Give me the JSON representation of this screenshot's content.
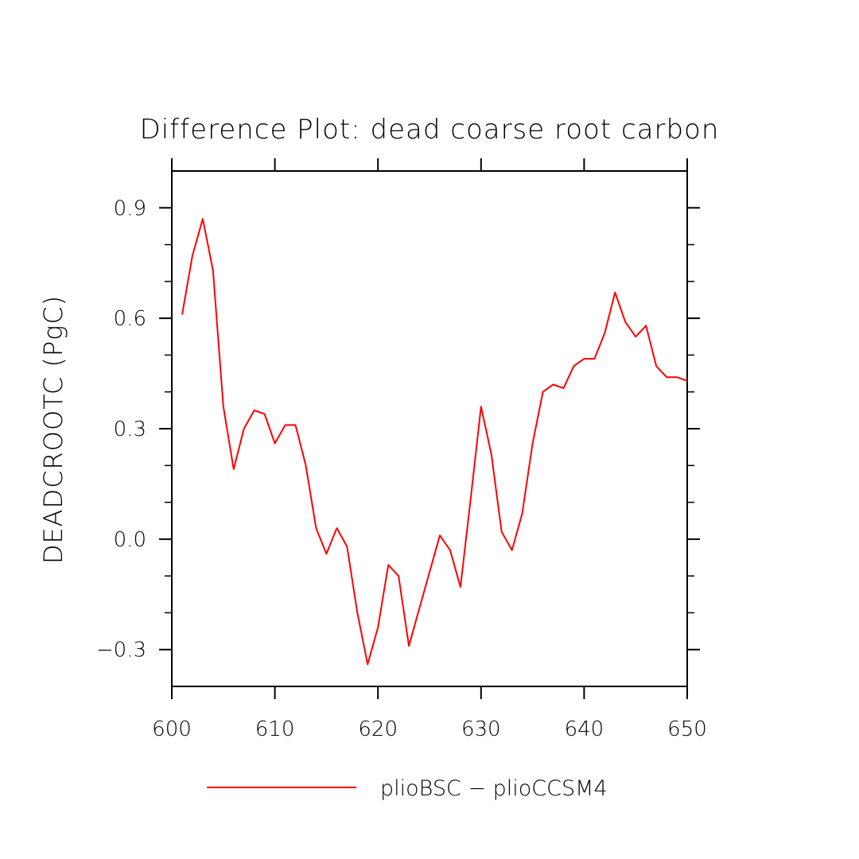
{
  "chart_data": {
    "type": "line",
    "title": "Difference Plot: dead coarse root carbon",
    "xlabel": "",
    "ylabel": "DEADCROOTC  (PgC)",
    "xlim": [
      600,
      650
    ],
    "ylim": [
      -0.4,
      1.0
    ],
    "x_ticks": [
      600,
      610,
      620,
      630,
      640,
      650
    ],
    "x_tick_labels": [
      "600",
      "610",
      "620",
      "630",
      "640",
      "650"
    ],
    "y_ticks": [
      -0.3,
      0.0,
      0.3,
      0.6,
      0.9
    ],
    "y_tick_labels": [
      "−0.3",
      "0.0",
      "0.3",
      "0.6",
      "0.9"
    ],
    "grid": false,
    "legend_position": "bottom-center",
    "series": [
      {
        "name": "plioBSC − plioCCSM4",
        "color": "#ff0000",
        "x": [
          601,
          602,
          603,
          604,
          605,
          606,
          607,
          608,
          609,
          610,
          611,
          612,
          613,
          614,
          615,
          616,
          617,
          618,
          619,
          620,
          621,
          622,
          623,
          624,
          625,
          626,
          627,
          628,
          629,
          630,
          631,
          632,
          633,
          634,
          635,
          636,
          637,
          638,
          639,
          640,
          641,
          642,
          643,
          644,
          645,
          646,
          647,
          648,
          649,
          650
        ],
        "y": [
          0.61,
          0.77,
          0.87,
          0.73,
          0.36,
          0.19,
          0.3,
          0.35,
          0.34,
          0.26,
          0.31,
          0.31,
          0.2,
          0.03,
          -0.04,
          0.03,
          -0.02,
          -0.2,
          -0.34,
          -0.24,
          -0.07,
          -0.1,
          -0.29,
          -0.19,
          -0.09,
          0.01,
          -0.03,
          -0.13,
          0.11,
          0.36,
          0.23,
          0.02,
          -0.03,
          0.07,
          0.26,
          0.4,
          0.42,
          0.41,
          0.47,
          0.49,
          0.49,
          0.56,
          0.67,
          0.59,
          0.55,
          0.58,
          0.47,
          0.44,
          0.44,
          0.43
        ]
      }
    ]
  }
}
